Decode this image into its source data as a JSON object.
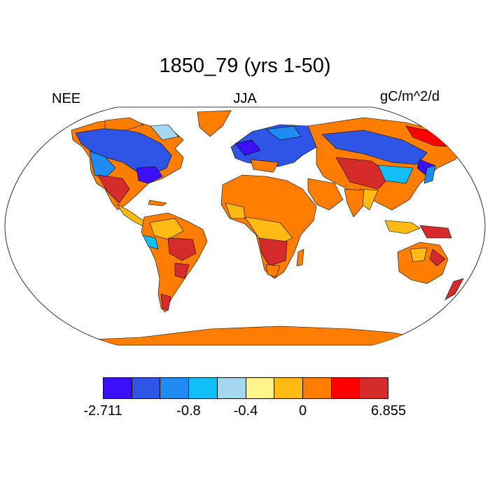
{
  "title": "1850_79 (yrs 1-50)",
  "left_label": "NEE",
  "center_label": "JJA",
  "right_label": "gC/m^2/d",
  "colors": {
    "ocean": "#ffffff",
    "coast": "#000000"
  },
  "colorbar": {
    "colors": [
      "#3b0ff7",
      "#2f55e6",
      "#1f8cf5",
      "#12bff7",
      "#a4d8f0",
      "#fff48c",
      "#ffbb14",
      "#ff7d00",
      "#ff0000",
      "#d62b2b"
    ],
    "labels": [
      {
        "text": "-2.711",
        "index": 0
      },
      {
        "text": "-0.8",
        "index": 3
      },
      {
        "text": "-0.4",
        "index": 5
      },
      {
        "text": "0",
        "index": 7
      },
      {
        "text": "6.855",
        "index": 10
      }
    ]
  }
}
